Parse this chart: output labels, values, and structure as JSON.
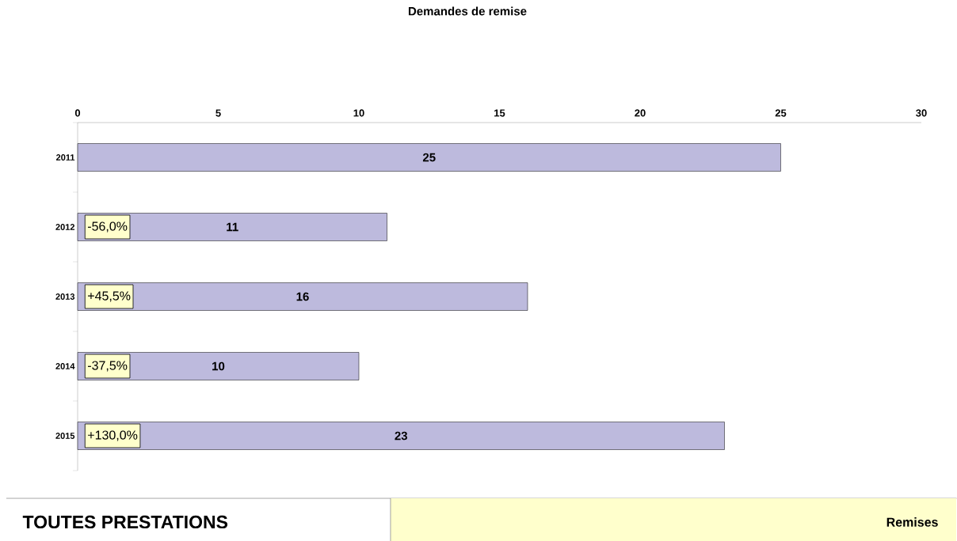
{
  "chart_data": {
    "type": "bar",
    "orientation": "horizontal",
    "title": "Demandes de remise",
    "categories": [
      "2011",
      "2012",
      "2013",
      "2014",
      "2015"
    ],
    "values": [
      25,
      11,
      16,
      10,
      23
    ],
    "color": "#bdbadd",
    "xlim": [
      0,
      30
    ],
    "xticks": [
      0,
      5,
      10,
      15,
      20,
      25,
      30
    ],
    "data_labels": true,
    "grid": false,
    "annotations": [
      "-56,0%",
      "+45,5%",
      "-37,5%",
      "+130,0%",
      "TOUTES PRESTATIONS",
      "Remises"
    ]
  }
}
